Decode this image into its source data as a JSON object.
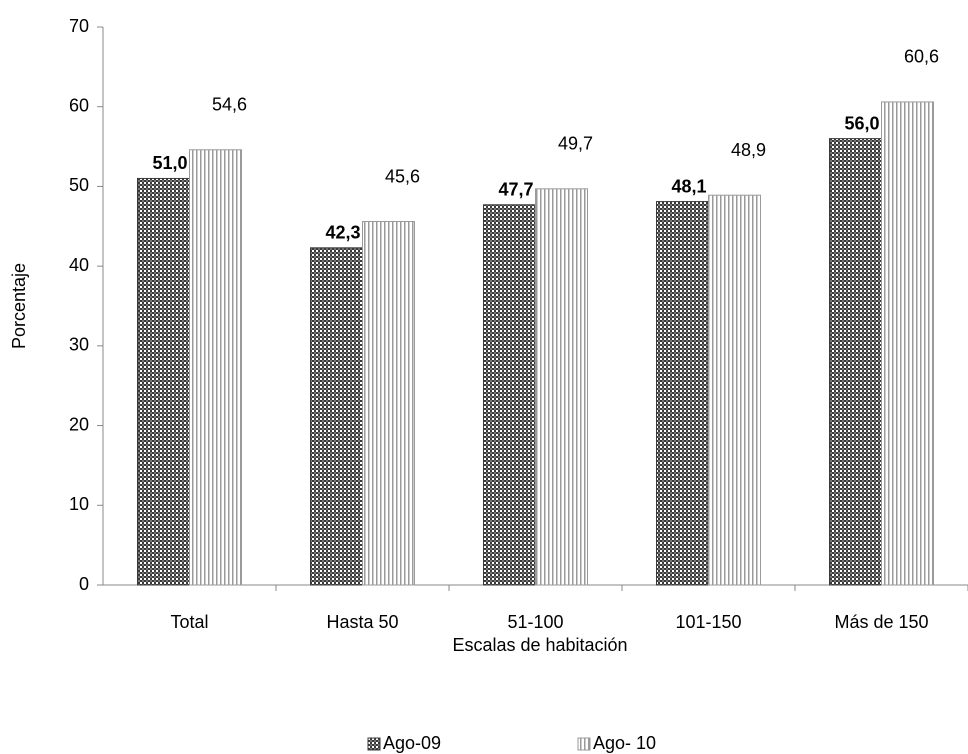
{
  "chart_data": {
    "type": "bar",
    "x_label": "Escalas de habitación",
    "y_label": "Porcentaje",
    "categories": [
      "Total",
      "Hasta 50",
      "51-100",
      "101-150",
      "Más de 150"
    ],
    "series": [
      {
        "name": "Ago-09",
        "color": "#3a3a3a",
        "pattern": "checker",
        "bold_labels": true,
        "values": [
          51.0,
          42.3,
          47.7,
          48.1,
          56.0
        ],
        "value_labels": [
          "51,0",
          "42,3",
          "47,7",
          "48,1",
          "56,0"
        ]
      },
      {
        "name": "Ago- 10",
        "color": "#9a9a9a",
        "pattern": "stripes",
        "bold_labels": false,
        "values": [
          54.6,
          45.6,
          49.7,
          48.9,
          60.6
        ],
        "value_labels": [
          "54,6",
          "45,6",
          "49,7",
          "48,9",
          "60,6"
        ]
      }
    ],
    "ylim": [
      0,
      70
    ],
    "yticks": [
      0,
      10,
      20,
      30,
      40,
      50,
      60,
      70
    ],
    "grid": false,
    "legend": "bottom"
  }
}
